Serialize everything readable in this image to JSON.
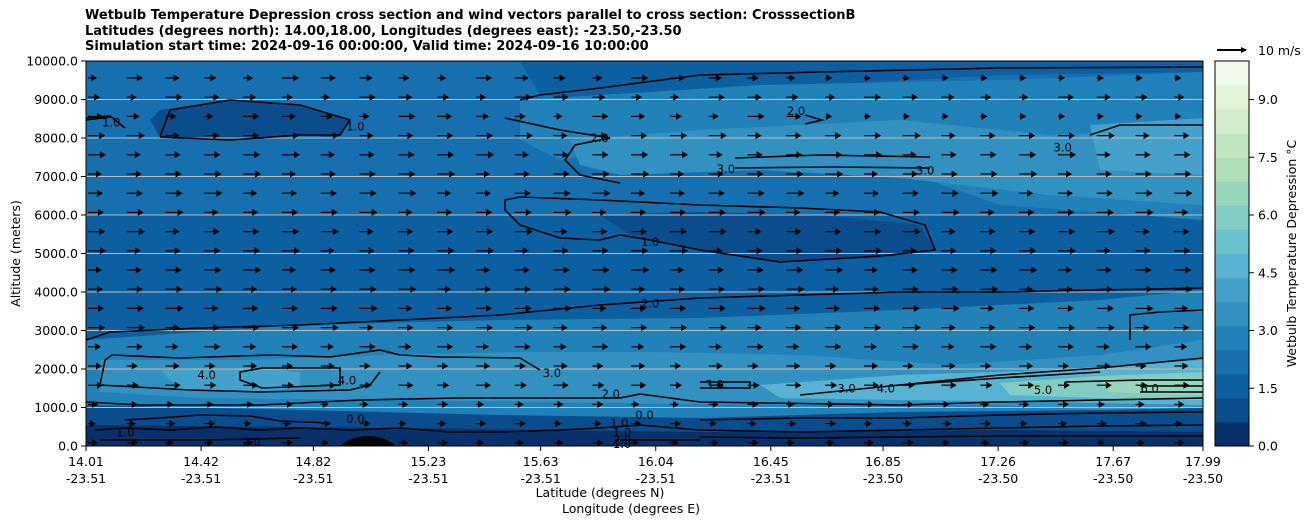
{
  "title_lines": [
    "Wetbulb Temperature Depression cross section and wind vectors parallel to cross section: CrosssectionB",
    "Latitudes (degrees north): 14.00,18.00, Longitudes (degrees east): -23.50,-23.50",
    "Simulation start time: 2024-09-16 00:00:00, Valid time: 2024-09-16 10:00:00"
  ],
  "chart_data": {
    "type": "heatmap",
    "subtype": "filled contour cross section with contour lines and wind vectors",
    "ylabel": "Altitude (meters)",
    "xlabel_line1": "Latitude (degrees N)",
    "xlabel_line2": "Longitude (degrees E)",
    "ylim": [
      0,
      10000
    ],
    "yticks": [
      "0.0",
      "1000.0",
      "2000.0",
      "3000.0",
      "4000.0",
      "5000.0",
      "6000.0",
      "7000.0",
      "8000.0",
      "9000.0",
      "10000.0"
    ],
    "xticks_lat": [
      "14.01",
      "14.42",
      "14.82",
      "15.23",
      "15.63",
      "16.04",
      "16.45",
      "16.85",
      "17.26",
      "17.67",
      "17.99"
    ],
    "xticks_lon": [
      "-23.51",
      "-23.51",
      "-23.51",
      "-23.51",
      "-23.51",
      "-23.51",
      "-23.51",
      "-23.50",
      "-23.50",
      "-23.50",
      "-23.50"
    ],
    "grid": "horizontal lines at y ticks",
    "colorbar": {
      "label": "Wetbulb Temperature Depression °C",
      "range": [
        0,
        10
      ],
      "ticks": [
        "0.0",
        "1.5",
        "3.0",
        "4.5",
        "6.0",
        "7.5",
        "9.0"
      ],
      "colormap": "GnBu reversed (dark blue low, pale green high)",
      "colors": [
        "#08306b",
        "#0b4d8c",
        "#0c5fa0",
        "#166fae",
        "#2182b9",
        "#3391c2",
        "#43a1cb",
        "#57b3d1",
        "#6bc3cd",
        "#82cdc3",
        "#97d5bc",
        "#aedeb6",
        "#c0e6bd",
        "#d1edc9",
        "#e2f4d8",
        "#f0faea"
      ]
    },
    "contour_labels": [
      {
        "text": "1.0",
        "lat": 14.1,
        "alt_m": 8400
      },
      {
        "text": "1.0",
        "lat": 14.97,
        "alt_m": 8300
      },
      {
        "text": "2.0",
        "lat": 15.84,
        "alt_m": 8000
      },
      {
        "text": "2.0",
        "lat": 16.54,
        "alt_m": 8700
      },
      {
        "text": "3.0",
        "lat": 16.29,
        "alt_m": 7200
      },
      {
        "text": "3.0",
        "lat": 17.0,
        "alt_m": 7150
      },
      {
        "text": "3.0",
        "lat": 17.49,
        "alt_m": 7750
      },
      {
        "text": "1.0",
        "lat": 16.02,
        "alt_m": 5300
      },
      {
        "text": "2.0",
        "lat": 16.02,
        "alt_m": 3700
      },
      {
        "text": "4.0",
        "lat": 14.44,
        "alt_m": 1850
      },
      {
        "text": "4.0",
        "lat": 14.94,
        "alt_m": 1700
      },
      {
        "text": "3.0",
        "lat": 15.67,
        "alt_m": 1900
      },
      {
        "text": "2.0",
        "lat": 15.88,
        "alt_m": 1350
      },
      {
        "text": "3.0",
        "lat": 16.25,
        "alt_m": 1600
      },
      {
        "text": "3.0",
        "lat": 16.72,
        "alt_m": 1500
      },
      {
        "text": "4.0",
        "lat": 16.86,
        "alt_m": 1500
      },
      {
        "text": "5.0",
        "lat": 17.42,
        "alt_m": 1450
      },
      {
        "text": "6.0",
        "lat": 17.8,
        "alt_m": 1500
      },
      {
        "text": "0.0",
        "lat": 14.97,
        "alt_m": 700
      },
      {
        "text": "1.0",
        "lat": 14.15,
        "alt_m": 350
      },
      {
        "text": "1.0",
        "lat": 15.91,
        "alt_m": 600
      },
      {
        "text": "1.0",
        "lat": 15.92,
        "alt_m": 350
      },
      {
        "text": "1.0",
        "lat": 15.92,
        "alt_m": 50
      },
      {
        "text": "2.0",
        "lat": 14.6,
        "alt_m": 100
      },
      {
        "text": "2.0",
        "lat": 15.92,
        "alt_m": 150
      },
      {
        "text": "0.0",
        "lat": 16.0,
        "alt_m": 800
      }
    ],
    "vector_key": {
      "label": "10 m/s",
      "speed_ms": 10
    },
    "wind_vectors": "mostly eastward (rightward) arrows, strongest between 4000 and 7500 m, weaker near the surface and above 8500 m",
    "terrain": "small black hill near lat 15.0 reaching about 200 m"
  }
}
